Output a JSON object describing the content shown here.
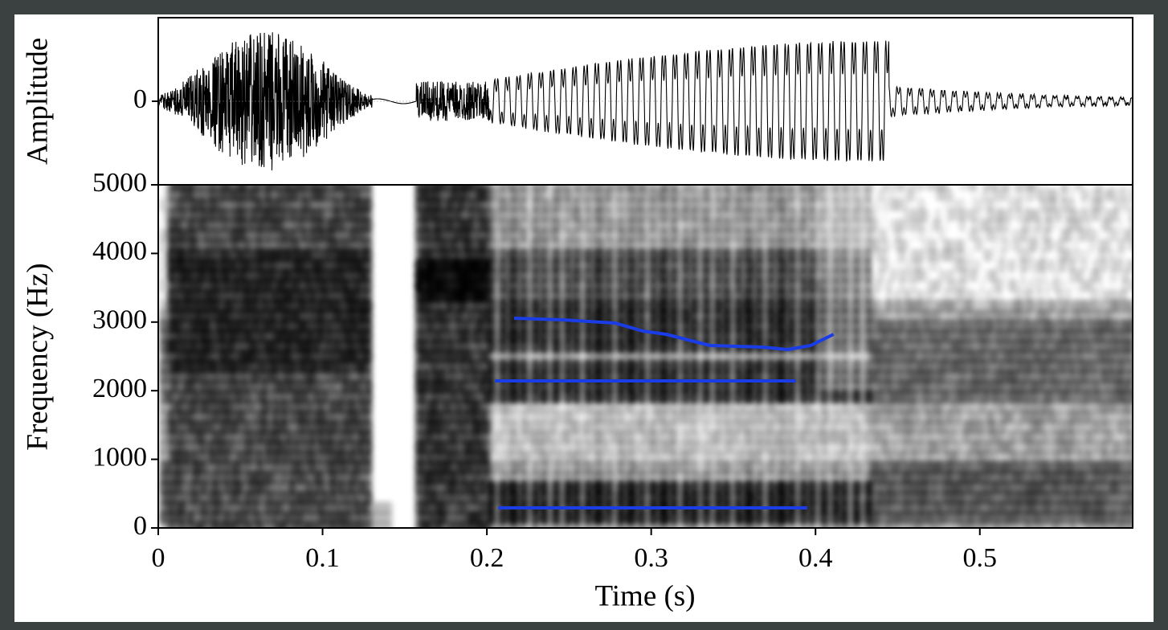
{
  "chart_data": [
    {
      "type": "waveform",
      "ylabel": "Amplitude",
      "ylim": [
        -1,
        1
      ],
      "yticks": [
        0
      ]
    },
    {
      "type": "line",
      "xlabel": "Time (s)",
      "ylabel": "Frequency (Hz)",
      "xlim": [
        0,
        0.593
      ],
      "xticks": [
        0,
        0.1,
        0.2,
        0.3,
        0.4,
        0.5
      ],
      "ylim": [
        0,
        5000
      ],
      "yticks": [
        0,
        1000,
        2000,
        3000,
        4000,
        5000
      ],
      "series": [
        {
          "color": "#1a3de8",
          "x": [
            0.207,
            0.395
          ],
          "values": [
            293,
            293
          ]
        },
        {
          "color": "#1a3de8",
          "x": [
            0.205,
            0.388
          ],
          "values": [
            2143,
            2143
          ]
        },
        {
          "color": "#1a3de8",
          "x": [
            0.2165,
            0.246,
            0.278,
            0.295,
            0.309,
            0.336,
            0.368,
            0.383,
            0.397,
            0.411
          ],
          "values": [
            3056,
            3033,
            2986,
            2869,
            2822,
            2658,
            2635,
            2600,
            2658,
            2822
          ]
        }
      ]
    }
  ]
}
